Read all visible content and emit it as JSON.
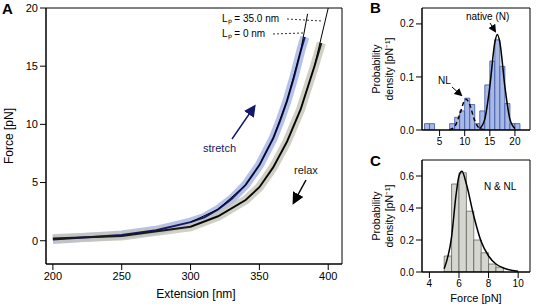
{
  "chart_data": [
    {
      "type": "line",
      "title": "A",
      "xlabel": "Extension [nm]",
      "ylabel": "Force [pN]",
      "xlim": [
        195,
        410
      ],
      "ylim": [
        -2,
        20
      ],
      "xticks": [
        200,
        250,
        300,
        350,
        400
      ],
      "yticks": [
        0,
        5,
        10,
        15,
        20
      ],
      "annotations": [
        "Lₚ = 35.0 nm",
        "Lₚ = 0 nm"
      ],
      "series": [
        {
          "name": "stretch",
          "color": "#14196b",
          "x": [
            200,
            225,
            250,
            275,
            300,
            310,
            320,
            330,
            340,
            350,
            360,
            365,
            370,
            375,
            380,
            383
          ],
          "values": [
            0.1,
            0.3,
            0.5,
            0.9,
            1.6,
            2.0,
            2.7,
            3.6,
            4.8,
            6.5,
            8.8,
            10.3,
            12,
            14,
            16.3,
            17.5
          ]
        },
        {
          "name": "relax",
          "color": "#1a1a1a",
          "x": [
            200,
            250,
            300,
            320,
            340,
            350,
            360,
            370,
            380,
            390,
            395
          ],
          "values": [
            0.2,
            0.4,
            1.2,
            2.1,
            3.5,
            4.6,
            6.3,
            8.5,
            11.3,
            15,
            17
          ]
        },
        {
          "color": "#000000",
          "x": [
            300,
            320,
            340,
            350,
            360,
            370,
            380,
            390,
            400
          ],
          "values": [
            1.2,
            2.1,
            3.5,
            4.6,
            6.3,
            8.5,
            11.3,
            15,
            20
          ]
        },
        {
          "color": "#000000",
          "x": [
            300,
            320,
            340,
            350,
            360,
            370,
            380,
            385
          ],
          "values": [
            1.6,
            2.7,
            4.8,
            6.5,
            8.8,
            12,
            16.3,
            19.5
          ]
        }
      ]
    },
    {
      "type": "histogram",
      "title": "B",
      "ylabel": "Probability density [pN⁻¹]",
      "xlim": [
        1.5,
        23
      ],
      "ylim": [
        0,
        0.23
      ],
      "xticks": [
        5,
        10,
        15,
        20
      ],
      "yticks": [
        {
          "value": 0,
          "label": "0.0"
        },
        0.1,
        0.2
      ],
      "bins": [
        2,
        3,
        4,
        5,
        6,
        7,
        8,
        9,
        10,
        11,
        12,
        13,
        14,
        15,
        16,
        17,
        18,
        19,
        20,
        21
      ],
      "values": [
        0.012,
        0.012,
        0,
        0,
        0,
        0.012,
        0.024,
        0.036,
        0.06,
        0.048,
        0.012,
        0.036,
        0.085,
        0.13,
        0.17,
        0.12,
        0.05,
        0.012,
        0.012
      ],
      "color": "#a9b9e6",
      "annotations": [
        "native (N)",
        "NL"
      ],
      "series": [
        {
          "type": "line",
          "line_style": "dashed",
          "color": "#000000",
          "x": [
            7,
            8,
            9,
            10,
            10.3,
            11,
            12,
            13,
            14
          ],
          "values": [
            0.0006,
            0.0065,
            0.029,
            0.056,
            0.058,
            0.0475,
            0.0176,
            0.0029,
            0.0003
          ]
        },
        {
          "type": "line",
          "line_style": "solid",
          "color": "#000000",
          "x": [
            13,
            14,
            15,
            16,
            16.5,
            17,
            18,
            19,
            20
          ],
          "values": [
            0.0026,
            0.0205,
            0.082,
            0.165,
            0.18,
            0.165,
            0.082,
            0.0205,
            0.0026
          ]
        }
      ]
    },
    {
      "type": "histogram",
      "title": "C",
      "xlabel": "Force [pN]",
      "ylabel": "Probability density [pN⁻¹]",
      "xlim": [
        3.5,
        10.8
      ],
      "ylim": [
        0,
        0.7
      ],
      "xticks": [
        4,
        6,
        8,
        10
      ],
      "yticks": [
        {
          "value": 0,
          "label": "0.0"
        },
        0.2,
        0.4,
        0.6
      ],
      "bins": [
        5,
        5.5,
        6,
        6.5,
        7,
        7.5,
        8,
        8.5,
        9
      ],
      "values": [
        0.1,
        0.55,
        0.62,
        0.38,
        0.2,
        0.12,
        0.05,
        0.03
      ],
      "color": "#d6d6d0",
      "annotations": [
        "N & NL"
      ],
      "series": [
        {
          "type": "line",
          "line_style": "solid",
          "color": "#000000",
          "x": [
            5,
            5.5,
            5.8,
            6,
            6.2,
            6.5,
            7,
            7.5,
            8,
            8.5,
            9,
            10
          ],
          "values": [
            0.02,
            0.22,
            0.48,
            0.6,
            0.63,
            0.55,
            0.35,
            0.19,
            0.1,
            0.05,
            0.025,
            0.005
          ]
        }
      ]
    }
  ]
}
